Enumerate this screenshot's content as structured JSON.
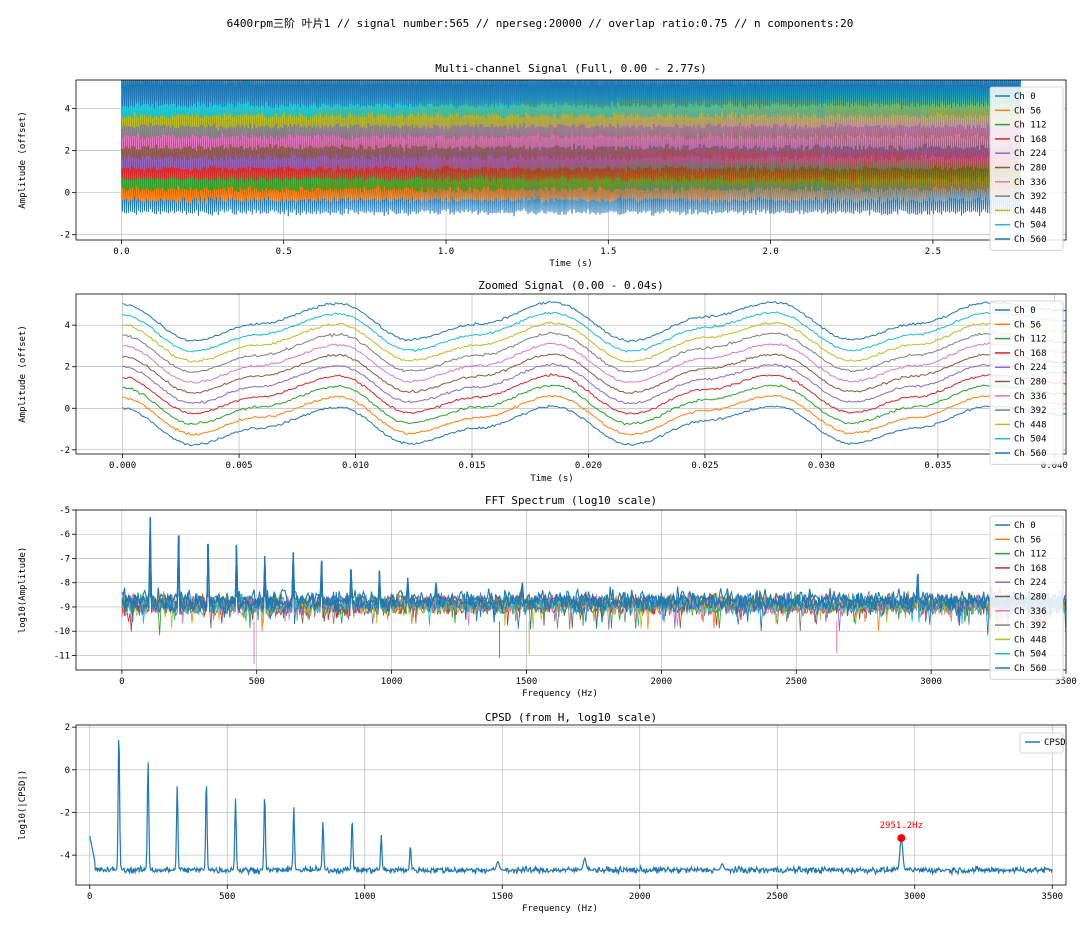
{
  "figure": {
    "suptitle": "6400rpm三阶 叶片1 // signal number:565 // nperseg:20000 // overlap ratio:0.75 // n components:20"
  },
  "channels": [
    "Ch 0",
    "Ch 56",
    "Ch 112",
    "Ch 168",
    "Ch 224",
    "Ch 280",
    "Ch 336",
    "Ch 392",
    "Ch 448",
    "Ch 504",
    "Ch 560"
  ],
  "colors": {
    "tab10": [
      "#1f77b4",
      "#ff7f0e",
      "#2ca02c",
      "#d62728",
      "#9467bd",
      "#8c564b",
      "#e377c2",
      "#7f7f7f",
      "#bcbd22",
      "#17becf"
    ],
    "marker": "#ff0000",
    "grid": "#b0b0b0"
  },
  "chart_data": [
    {
      "type": "line",
      "title": "Multi-channel Signal (Full, 0.00 - 2.77s)",
      "xlabel": "Time (s)",
      "ylabel": "Amplitude (offset)",
      "xlim": [
        -0.14,
        2.91
      ],
      "ylim": [
        -2.25,
        5.35
      ],
      "xticks": [
        0.0,
        0.5,
        1.0,
        1.5,
        2.0,
        2.5
      ],
      "xtick_labels": [
        "0.0",
        "0.5",
        "1.0",
        "1.5",
        "2.0",
        "2.5"
      ],
      "yticks": [
        -2,
        0,
        2,
        4
      ],
      "ytick_labels": [
        "-2",
        "0",
        "2",
        "4"
      ],
      "grid": true,
      "legend": "right",
      "channel_offsets": [
        0,
        0.5,
        1.0,
        1.5,
        2.0,
        2.5,
        3.0,
        3.5,
        4.0,
        4.5,
        5.0
      ],
      "band_ranges": [
        [
          -1.8,
          5.2
        ]
      ],
      "x_range": [
        0.0,
        2.77
      ]
    },
    {
      "type": "line",
      "title": "Zoomed Signal (0.00 - 0.04s)",
      "xlabel": "Time (s)",
      "ylabel": "Amplitude (offset)",
      "xlim": [
        -0.002,
        0.0405
      ],
      "ylim": [
        -2.2,
        5.5
      ],
      "xticks": [
        0.0,
        0.005,
        0.01,
        0.015,
        0.02,
        0.025,
        0.03,
        0.035,
        0.04
      ],
      "xtick_labels": [
        "0.000",
        "0.005",
        "0.010",
        "0.015",
        "0.020",
        "0.025",
        "0.030",
        "0.035",
        "0.040"
      ],
      "yticks": [
        -2,
        0,
        2,
        4
      ],
      "ytick_labels": [
        "-2",
        "0",
        "2",
        "4"
      ],
      "grid": true,
      "legend": "right",
      "channel_offsets": [
        0,
        0.5,
        1.0,
        1.5,
        2.0,
        2.5,
        3.0,
        3.5,
        4.0,
        4.5,
        5.0
      ],
      "base_curve": {
        "x": [
          0.0,
          0.003,
          0.0058,
          0.0093,
          0.0123,
          0.0153,
          0.0185,
          0.0218,
          0.025,
          0.028,
          0.0313,
          0.034,
          0.0372,
          0.0405
        ],
        "y": [
          0.0,
          -1.75,
          -0.95,
          0.05,
          -1.7,
          -0.95,
          0.1,
          -1.75,
          -0.6,
          0.1,
          -1.7,
          -0.95,
          0.1,
          -0.3
        ]
      }
    },
    {
      "type": "line",
      "title": "FFT Spectrum (log10 scale)",
      "xlabel": "Frequency (Hz)",
      "ylabel": "log10(Amplitude)",
      "xlim": [
        -170,
        3500
      ],
      "ylim": [
        -11.6,
        -5.0
      ],
      "xticks": [
        0,
        500,
        1000,
        1500,
        2000,
        2500,
        3000,
        3500
      ],
      "xtick_labels": [
        "0",
        "500",
        "1000",
        "1500",
        "2000",
        "2500",
        "3000",
        "3500"
      ],
      "yticks": [
        -11,
        -10,
        -9,
        -8,
        -7,
        -6,
        -5
      ],
      "ytick_labels": [
        "-11",
        "-10",
        "-9",
        "-8",
        "-7",
        "-6",
        "-5"
      ],
      "grid": true,
      "legend": "right",
      "noise_floor_range": [
        -9.5,
        -8.3
      ],
      "peaks": {
        "freq": [
          106,
          212,
          318,
          424,
          530,
          636,
          742,
          848,
          954,
          1060,
          1166,
          1484,
          2952
        ],
        "log10_amplitude": [
          -5.3,
          -6.05,
          -6.4,
          -6.45,
          -6.9,
          -6.75,
          -7.1,
          -7.45,
          -7.5,
          -7.8,
          -8.0,
          -8.0,
          -7.65
        ]
      },
      "min_spikes": {
        "freq": [
          490,
          1400,
          1510,
          2650
        ],
        "log10_amplitude": [
          -11.35,
          -11.1,
          -10.95,
          -10.9
        ]
      }
    },
    {
      "type": "line",
      "title": "CPSD (from H, log10 scale)",
      "xlabel": "Frequency (Hz)",
      "ylabel": "log10(|CPSD|)",
      "xlim": [
        -50,
        3550
      ],
      "ylim": [
        -5.4,
        2.1
      ],
      "xticks": [
        0,
        500,
        1000,
        1500,
        2000,
        2500,
        3000,
        3500
      ],
      "xtick_labels": [
        "0",
        "500",
        "1000",
        "1500",
        "2000",
        "2500",
        "3000",
        "3500"
      ],
      "yticks": [
        -4,
        -2,
        0,
        2
      ],
      "ytick_labels": [
        "-4",
        "-2",
        "0",
        "2"
      ],
      "grid": true,
      "legend": "top-right",
      "series_name": "CPSD",
      "baseline": -4.7,
      "peaks": {
        "freq": [
          0,
          106,
          212,
          318,
          424,
          530,
          636,
          742,
          848,
          954,
          1060,
          1166,
          1484,
          1800,
          2300,
          2951.2
        ],
        "value": [
          -3.1,
          1.9,
          0.45,
          -0.7,
          -0.45,
          -1.35,
          -1.1,
          -1.7,
          -2.4,
          -2.3,
          -3.05,
          -3.55,
          -4.3,
          -4.15,
          -4.4,
          -3.2
        ]
      },
      "annotation": {
        "freq": 2951.2,
        "value": -3.2,
        "label": "2951.2Hz"
      }
    }
  ]
}
